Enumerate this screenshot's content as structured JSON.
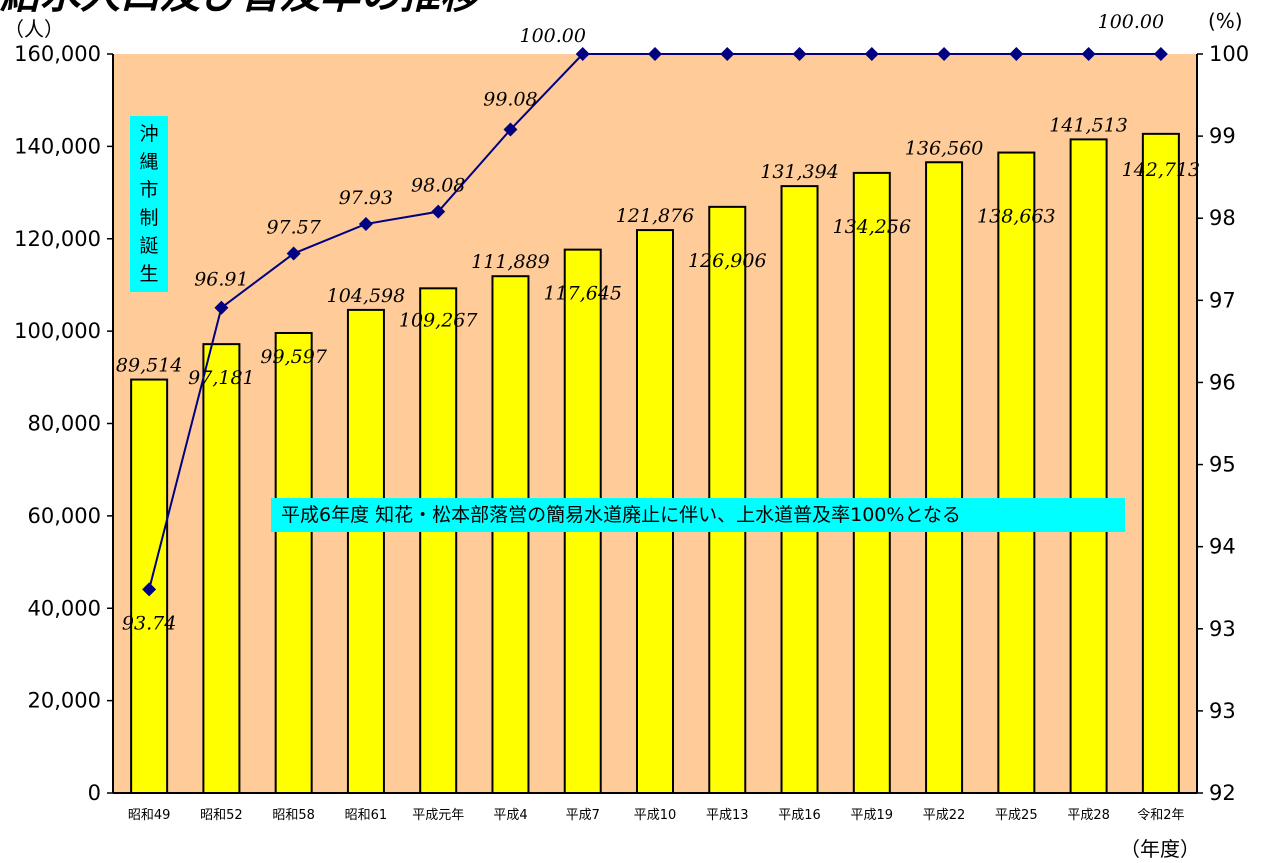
{
  "title": "給水人口及び普及率の推移",
  "units": {
    "left": "（人）",
    "right": "(%)",
    "xaxis": "（年度）"
  },
  "annotations": {
    "side_label": [
      "沖",
      "縄",
      "市",
      "制",
      "誕",
      "生"
    ],
    "note": "平成6年度 知花・松本部落営の簡易水道廃止に伴い、上水道普及率100%となる"
  },
  "colors": {
    "plot_bg": "#FFCC99",
    "bar_fill": "#FFFF00",
    "line": "#000080",
    "marker": "#000080",
    "callout": "#00FFFF"
  },
  "chart_data": {
    "type": "bar",
    "categories": [
      "昭和49",
      "昭和52",
      "昭和58",
      "昭和61",
      "平成元年",
      "平成4",
      "平成7",
      "平成10",
      "平成13",
      "平成16",
      "平成19",
      "平成22",
      "平成25",
      "平成28",
      "令和2年"
    ],
    "series": [
      {
        "type": "bar",
        "axis": "left",
        "values": [
          89514,
          97181,
          99597,
          104598,
          109267,
          111889,
          117645,
          121876,
          126906,
          131394,
          134256,
          136560,
          138663,
          141513,
          142713
        ],
        "labels": [
          "89,514",
          "97,181",
          "99,597",
          "104,598",
          "109,267",
          "111,889",
          "117,645",
          "121,876",
          "126,906",
          "131,394",
          "134,256",
          "136,560",
          "138,663",
          "141,513",
          "142,713"
        ]
      },
      {
        "type": "line",
        "axis": "right",
        "values": [
          93.74,
          96.91,
          97.57,
          97.93,
          98.08,
          99.08,
          100.0,
          100.0,
          100.0,
          100.0,
          100.0,
          100.0,
          100.0,
          100.0,
          100.0
        ],
        "labels": [
          "93.74",
          "96.91",
          "97.57",
          "97.93",
          "98.08",
          "99.08",
          "100.00",
          "",
          "",
          "",
          "",
          "",
          "",
          "",
          "100.00"
        ]
      }
    ],
    "y_left": {
      "min": 0,
      "max": 160000,
      "ticks": [
        "0",
        "20,000",
        "40,000",
        "60,000",
        "80,000",
        "100,000",
        "120,000",
        "140,000",
        "160,000"
      ]
    },
    "y_right": {
      "min": 92,
      "max": 100,
      "ticks": [
        "92",
        "93",
        "93",
        "94",
        "95",
        "96",
        "97",
        "98",
        "99",
        "100"
      ]
    },
    "grid": false
  }
}
